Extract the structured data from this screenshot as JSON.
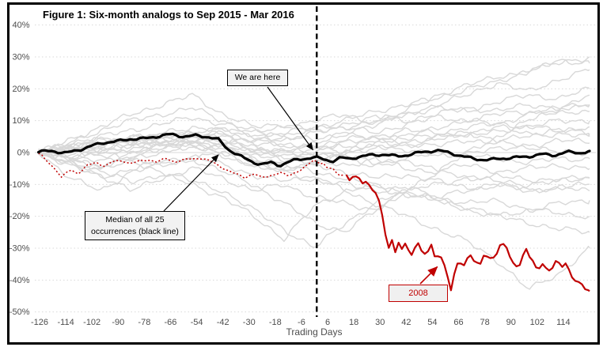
{
  "figure": {
    "title": "Figure 1: Six-month analogs to Sep 2015 - Mar 2016"
  },
  "chart_data": {
    "type": "line",
    "title": "Figure 1: Six-month analogs to Sep 2015 - Mar 2016",
    "xlabel": "Trading Days",
    "ylabel": "",
    "xlim": [
      -128,
      128
    ],
    "ylim": [
      -50,
      40
    ],
    "x_ticks": [
      -126,
      -114,
      -102,
      -90,
      -78,
      -66,
      -54,
      -42,
      -30,
      -18,
      -6,
      6,
      18,
      30,
      42,
      54,
      66,
      78,
      90,
      102,
      114
    ],
    "y_ticks": [
      40,
      30,
      20,
      10,
      0,
      -10,
      -20,
      -30,
      -40,
      -50
    ],
    "y_tick_format": "percent",
    "grid": "horizontal-dotted",
    "legend": "none",
    "vline_x": 1,
    "colors": {
      "analog": "#d8d8d8",
      "median": "#000000",
      "highlight": "#c00000",
      "grid": "#d9d9d9",
      "axis_text": "#4d4d4d",
      "vline": "#000000"
    },
    "annotations": {
      "we_are_here": {
        "label": "We are here",
        "target": [
          0,
          0.3
        ]
      },
      "median": {
        "label_lines": [
          "Median of all 25",
          "occurrences (black line)"
        ],
        "target": [
          -44,
          0.3
        ]
      },
      "y2008": {
        "label": "2008",
        "target": [
          57,
          -35.8
        ]
      }
    },
    "median_series": {
      "name": "Median of all 25 occurrences",
      "points": [
        [
          -126,
          0
        ],
        [
          -120,
          0.5
        ],
        [
          -114,
          0
        ],
        [
          -108,
          1
        ],
        [
          -102,
          2
        ],
        [
          -96,
          3
        ],
        [
          -90,
          3.5
        ],
        [
          -84,
          4.5
        ],
        [
          -78,
          4.5
        ],
        [
          -72,
          5
        ],
        [
          -66,
          5.5
        ],
        [
          -60,
          5
        ],
        [
          -54,
          5.5
        ],
        [
          -48,
          5
        ],
        [
          -44,
          4
        ],
        [
          -40,
          1
        ],
        [
          -36,
          -0.5
        ],
        [
          -32,
          -2
        ],
        [
          -28,
          -3
        ],
        [
          -24,
          -3.5
        ],
        [
          -20,
          -3
        ],
        [
          -16,
          -4
        ],
        [
          -12,
          -3
        ],
        [
          -8,
          -2.5
        ],
        [
          -4,
          -2
        ],
        [
          0,
          -1.5
        ],
        [
          4,
          -2
        ],
        [
          8,
          -2.5
        ],
        [
          12,
          -1.5
        ],
        [
          16,
          -2
        ],
        [
          20,
          -1.5
        ],
        [
          26,
          -1
        ],
        [
          32,
          -0.5
        ],
        [
          38,
          -1
        ],
        [
          44,
          -0.5
        ],
        [
          50,
          0
        ],
        [
          56,
          0.5
        ],
        [
          62,
          0
        ],
        [
          68,
          -1
        ],
        [
          74,
          -2
        ],
        [
          80,
          -2.5
        ],
        [
          86,
          -2
        ],
        [
          92,
          -1.5
        ],
        [
          98,
          -1
        ],
        [
          104,
          -0.5
        ],
        [
          110,
          -1
        ],
        [
          116,
          0
        ],
        [
          122,
          0
        ],
        [
          126,
          0.5
        ]
      ]
    },
    "highlight_series": {
      "name": "2008",
      "dash_until": 14,
      "points": [
        [
          -126,
          -0.5
        ],
        [
          -122,
          -3
        ],
        [
          -118,
          -6
        ],
        [
          -116,
          -8
        ],
        [
          -112,
          -5
        ],
        [
          -108,
          -6.5
        ],
        [
          -104,
          -4
        ],
        [
          -100,
          -3
        ],
        [
          -96,
          -4.5
        ],
        [
          -92,
          -3
        ],
        [
          -88,
          -2.5
        ],
        [
          -84,
          -3.5
        ],
        [
          -80,
          -2.5
        ],
        [
          -76,
          -2
        ],
        [
          -72,
          -3
        ],
        [
          -68,
          -2
        ],
        [
          -64,
          -3
        ],
        [
          -60,
          -2.5
        ],
        [
          -56,
          -2
        ],
        [
          -52,
          -1.5
        ],
        [
          -48,
          -2.5
        ],
        [
          -44,
          -4
        ],
        [
          -40,
          -5.5
        ],
        [
          -36,
          -7
        ],
        [
          -32,
          -8
        ],
        [
          -28,
          -6.5
        ],
        [
          -24,
          -8
        ],
        [
          -20,
          -7
        ],
        [
          -16,
          -6
        ],
        [
          -12,
          -7.5
        ],
        [
          -8,
          -6
        ],
        [
          -4,
          -4.5
        ],
        [
          0,
          -2.5
        ],
        [
          2,
          -3.5
        ],
        [
          4,
          -3
        ],
        [
          6,
          -5
        ],
        [
          8,
          -4.5
        ],
        [
          10,
          -6.5
        ],
        [
          12,
          -7.5
        ],
        [
          14,
          -6
        ],
        [
          16,
          -8.5
        ],
        [
          18,
          -7
        ],
        [
          20,
          -8
        ],
        [
          22,
          -10
        ],
        [
          24,
          -9
        ],
        [
          26,
          -11.5
        ],
        [
          28,
          -12.5
        ],
        [
          30,
          -16
        ],
        [
          31,
          -20
        ],
        [
          32,
          -24
        ],
        [
          33,
          -28
        ],
        [
          34,
          -30
        ],
        [
          35,
          -26
        ],
        [
          36,
          -29
        ],
        [
          37,
          -31
        ],
        [
          38,
          -27
        ],
        [
          40,
          -30
        ],
        [
          42,
          -28
        ],
        [
          44,
          -33
        ],
        [
          46,
          -30
        ],
        [
          47,
          -27.5
        ],
        [
          48,
          -29
        ],
        [
          50,
          -32
        ],
        [
          52,
          -31
        ],
        [
          53,
          -28
        ],
        [
          54,
          -30
        ],
        [
          55,
          -33
        ],
        [
          56,
          -31
        ],
        [
          57,
          -35
        ],
        [
          58,
          -33
        ],
        [
          60,
          -36
        ],
        [
          62,
          -42
        ],
        [
          63,
          -44
        ],
        [
          64,
          -38
        ],
        [
          66,
          -34
        ],
        [
          68,
          -36
        ],
        [
          70,
          -33
        ],
        [
          71,
          -31
        ],
        [
          72,
          -33
        ],
        [
          74,
          -34
        ],
        [
          76,
          -35
        ],
        [
          77,
          -33
        ],
        [
          78,
          -32
        ],
        [
          80,
          -33.5
        ],
        [
          82,
          -33
        ],
        [
          84,
          -31
        ],
        [
          85,
          -29
        ],
        [
          86,
          -28.5
        ],
        [
          88,
          -30
        ],
        [
          90,
          -34
        ],
        [
          92,
          -36
        ],
        [
          94,
          -35
        ],
        [
          96,
          -31
        ],
        [
          97,
          -30
        ],
        [
          98,
          -32
        ],
        [
          100,
          -34
        ],
        [
          102,
          -37
        ],
        [
          104,
          -35.5
        ],
        [
          105,
          -34
        ],
        [
          106,
          -36
        ],
        [
          108,
          -37
        ],
        [
          110,
          -35
        ],
        [
          111,
          -33.5
        ],
        [
          112,
          -35
        ],
        [
          114,
          -36.5
        ],
        [
          115,
          -35
        ],
        [
          116,
          -36
        ],
        [
          118,
          -39
        ],
        [
          120,
          -40.5
        ],
        [
          122,
          -41
        ],
        [
          124,
          -43
        ],
        [
          126,
          -43.5
        ]
      ]
    },
    "analog_days": [
      -126,
      -112,
      -98,
      -84,
      -70,
      -56,
      -42,
      -28,
      -14,
      0,
      14,
      28,
      42,
      56,
      70,
      84,
      98,
      112,
      126
    ],
    "analog_series": [
      {
        "values": [
          0,
          2,
          4,
          3,
          6,
          8,
          7,
          5,
          6,
          8,
          10,
          13,
          15,
          17,
          20,
          22,
          26,
          28,
          30
        ]
      },
      {
        "values": [
          0,
          -2,
          1,
          3,
          2,
          5,
          6,
          4,
          2,
          3,
          6,
          9,
          13,
          18,
          21,
          24,
          25,
          29,
          28
        ]
      },
      {
        "values": [
          0,
          3,
          7,
          10,
          12,
          14,
          10,
          6,
          8,
          10,
          12,
          9,
          12,
          15,
          18,
          22,
          19,
          23,
          26
        ]
      },
      {
        "values": [
          0,
          4,
          8,
          12,
          15,
          18,
          12,
          8,
          9,
          7,
          9,
          11,
          10,
          12,
          14,
          13,
          15,
          14,
          15
        ]
      },
      {
        "values": [
          0,
          1,
          3,
          2,
          5,
          6,
          3,
          4,
          5,
          7,
          8,
          6,
          9,
          11,
          10,
          12,
          13,
          12,
          13
        ]
      },
      {
        "values": [
          0,
          -1,
          -3,
          0,
          2,
          4,
          5,
          2,
          0,
          2,
          4,
          5,
          7,
          6,
          8,
          9,
          8,
          10,
          10
        ]
      },
      {
        "values": [
          0,
          2,
          1,
          4,
          3,
          5,
          6,
          3,
          2,
          0,
          3,
          5,
          4,
          6,
          5,
          7,
          8,
          7,
          8
        ]
      },
      {
        "values": [
          0,
          -2,
          -4,
          -2,
          0,
          3,
          4,
          1,
          -1,
          1,
          2,
          4,
          3,
          5,
          6,
          4,
          5,
          6,
          5
        ]
      },
      {
        "values": [
          0,
          1,
          2,
          4,
          6,
          5,
          3,
          0,
          1,
          2,
          0,
          1,
          3,
          2,
          4,
          3,
          2,
          4,
          3
        ]
      },
      {
        "values": [
          0,
          -3,
          -5,
          -1,
          1,
          3,
          2,
          -2,
          -3,
          -1,
          0,
          2,
          1,
          -1,
          0,
          1,
          2,
          0,
          0
        ]
      },
      {
        "values": [
          0,
          2,
          3,
          5,
          4,
          6,
          4,
          1,
          0,
          -2,
          -1,
          -3,
          -2,
          0,
          -1,
          -2,
          -3,
          -2,
          -2
        ]
      },
      {
        "values": [
          0,
          -1,
          1,
          2,
          3,
          4,
          2,
          -1,
          -2,
          0,
          -2,
          -4,
          -3,
          -5,
          -4,
          -6,
          -5,
          -4,
          -5
        ]
      },
      {
        "values": [
          0,
          1,
          -1,
          0,
          2,
          1,
          3,
          0,
          -2,
          -3,
          -4,
          -2,
          -5,
          -6,
          -8,
          -7,
          -9,
          -8,
          -8
        ]
      },
      {
        "values": [
          0,
          -2,
          0,
          1,
          3,
          2,
          0,
          -3,
          -5,
          -4,
          -6,
          -8,
          -7,
          -9,
          -11,
          -10,
          -12,
          -11,
          -12
        ]
      },
      {
        "values": [
          0,
          2,
          4,
          3,
          5,
          4,
          1,
          -2,
          -4,
          -6,
          -8,
          -11,
          -13,
          -15,
          -17,
          -20,
          -18,
          -16,
          -15
        ]
      },
      {
        "values": [
          0,
          -4,
          -8,
          -5,
          -3,
          -1,
          -4,
          -7,
          -9,
          -8,
          -10,
          -12,
          -11,
          -14,
          -16,
          -15,
          -18,
          -19,
          -20
        ]
      },
      {
        "values": [
          0,
          1,
          3,
          5,
          4,
          2,
          -1,
          -4,
          -6,
          -8,
          -12,
          -16,
          -20,
          -24,
          -28,
          -34,
          -43,
          -38,
          -30
        ]
      },
      {
        "values": [
          0,
          -2,
          -5,
          -3,
          -6,
          -9,
          -12,
          -18,
          -24,
          -30,
          -22,
          -16,
          -12,
          -14,
          -12,
          -10,
          -12,
          -11,
          -10
        ]
      },
      {
        "values": [
          0,
          -3,
          -6,
          -9,
          -7,
          -10,
          -14,
          -20,
          -27,
          -17,
          -12,
          -10,
          -13,
          -15,
          -18,
          -20,
          -22,
          -24,
          -25
        ]
      },
      {
        "values": [
          0,
          2,
          0,
          -2,
          -4,
          -2,
          -6,
          -10,
          -16,
          -22,
          -25,
          -18,
          -12,
          -10,
          -8,
          -9,
          -10,
          -9,
          -8
        ]
      },
      {
        "values": [
          0,
          -8,
          -12,
          -6,
          -4,
          -2,
          0,
          -4,
          -6,
          -3,
          0,
          3,
          5,
          8,
          10,
          9,
          12,
          14,
          15
        ]
      },
      {
        "values": [
          0,
          -4,
          -7,
          -12,
          -8,
          -5,
          -8,
          -12,
          -10,
          -14,
          -16,
          -18,
          -12,
          -6,
          0,
          5,
          10,
          14,
          18
        ]
      },
      {
        "values": [
          0,
          1,
          2,
          5,
          3,
          6,
          8,
          5,
          4,
          6,
          8,
          10,
          12,
          14,
          13,
          16,
          18,
          17,
          20
        ]
      },
      {
        "values": [
          0,
          3,
          5,
          7,
          9,
          11,
          9,
          7,
          5,
          4,
          6,
          4,
          2,
          4,
          6,
          8,
          6,
          7,
          6
        ]
      }
    ]
  }
}
